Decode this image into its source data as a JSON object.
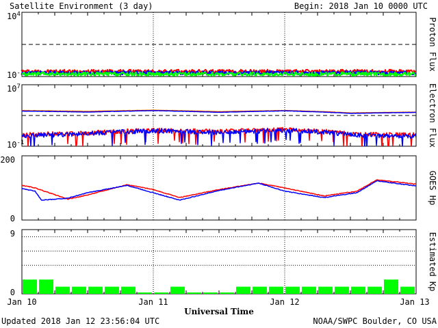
{
  "header": {
    "title": "Satellite Environment (3 day)",
    "begin": "Begin:  2018 Jan 10 0000 UTC"
  },
  "footer": {
    "updated": "Updated 2018 Jan 12 23:56:04 UTC",
    "credit": "NOAA/SWPC Boulder, CO USA"
  },
  "xaxis": {
    "label": "Universal Time",
    "ticks": [
      "Jan 10",
      "Jan 11",
      "Jan 12",
      "Jan 13"
    ],
    "range_days": [
      0,
      3
    ]
  },
  "colors": {
    "red": "#ff0000",
    "blue": "#0000ff",
    "green": "#00ff00",
    "orange": "#ffaa00",
    "kp_bar": "#00ff00"
  },
  "chart_data": [
    {
      "type": "line",
      "ylabel": "Proton Flux",
      "ytick_top": "10",
      "ytick_top_exp": "4",
      "ytick_bottom": "10",
      "ytick_bottom_exp": "-2",
      "scale": "log",
      "ylim": [
        0.01,
        10000
      ],
      "threshold": 10,
      "series": [
        {
          "color": "red",
          "level": 0.03
        },
        {
          "color": "blue",
          "level": 0.022
        },
        {
          "color": "green",
          "level": 0.017
        }
      ]
    },
    {
      "type": "line",
      "ylabel": "Electron Flux",
      "ytick_top": "10",
      "ytick_top_exp": "7",
      "ytick_bottom": "10",
      "ytick_bottom_exp": "-1",
      "scale": "log",
      "ylim": [
        0.1,
        10000000
      ],
      "threshold": 1000,
      "series": [
        {
          "color": "orange",
          "x": [
            0,
            0.5,
            1.0,
            1.5,
            2.0,
            2.5,
            3.0
          ],
          "y": [
            4500,
            3500,
            5000,
            3200,
            4500,
            2200,
            2800
          ]
        },
        {
          "color": "red",
          "x": [
            0,
            0.5,
            1.0,
            1.5,
            2.0,
            2.5,
            3.0
          ],
          "y": [
            4000,
            3000,
            4500,
            2800,
            4200,
            2000,
            2600
          ]
        },
        {
          "color": "blue",
          "x": [
            0,
            0.5,
            1.0,
            1.5,
            2.0,
            2.5,
            3.0
          ],
          "y": [
            3800,
            2800,
            4300,
            2600,
            4000,
            1900,
            2500
          ]
        },
        {
          "color": "red",
          "x": [
            0,
            0.5,
            1.0,
            1.5,
            2.0,
            2.5,
            3.0
          ],
          "y": [
            3,
            5,
            12,
            8,
            15,
            4,
            3
          ]
        },
        {
          "color": "blue",
          "x": [
            0,
            0.5,
            1.0,
            1.5,
            2.0,
            2.5,
            3.0
          ],
          "y": [
            2,
            4,
            10,
            6,
            12,
            3,
            2
          ]
        }
      ]
    },
    {
      "type": "line",
      "ylabel": "GOES Hp",
      "yticks": [
        "200",
        "0"
      ],
      "ylim": [
        0,
        200
      ],
      "series": [
        {
          "color": "red",
          "x": [
            0,
            0.1,
            0.35,
            0.5,
            0.8,
            1.0,
            1.2,
            1.5,
            1.8,
            2.0,
            2.3,
            2.55,
            2.7,
            3.0
          ],
          "y": [
            108,
            100,
            65,
            78,
            110,
            95,
            70,
            95,
            115,
            100,
            75,
            90,
            125,
            112
          ]
        },
        {
          "color": "blue",
          "x": [
            0,
            0.1,
            0.15,
            0.35,
            0.5,
            0.8,
            1.0,
            1.2,
            1.5,
            1.8,
            2.0,
            2.3,
            2.55,
            2.7,
            3.0
          ],
          "y": [
            98,
            90,
            62,
            68,
            85,
            108,
            85,
            62,
            92,
            115,
            90,
            70,
            85,
            122,
            106
          ]
        }
      ]
    },
    {
      "type": "bar",
      "ylabel": "Estimated Kp",
      "yticks": [
        "9",
        "0"
      ],
      "ylim": [
        0,
        9
      ],
      "gridlines": [
        4,
        6,
        8
      ],
      "bar_hours": 3,
      "values": [
        2,
        2,
        1,
        1,
        1,
        1,
        1,
        0,
        0,
        1,
        0,
        0,
        0,
        1,
        1,
        1,
        1,
        1,
        1,
        1,
        1,
        1,
        2,
        1
      ]
    }
  ]
}
